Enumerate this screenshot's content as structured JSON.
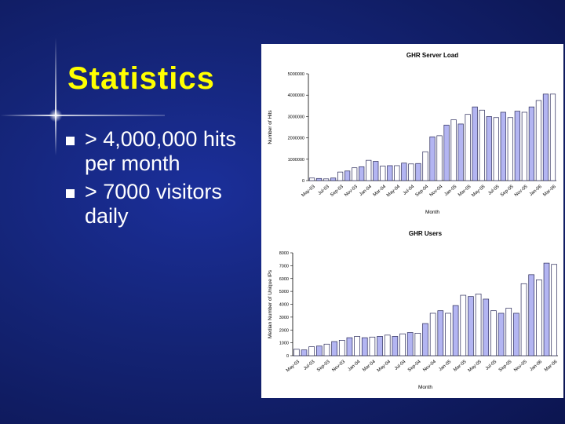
{
  "slide": {
    "title": "Statistics",
    "bullets": [
      "> 4,000,000 hits per month",
      "> 7000 visitors daily"
    ],
    "colors": {
      "background": "#142476",
      "title": "#ffff00",
      "text": "#ffffff"
    }
  },
  "chart_data": [
    {
      "type": "bar",
      "title": "GHR Server Load",
      "xlabel": "Month",
      "ylabel": "Number of Hits",
      "ylim": [
        0,
        5000000
      ],
      "yticks": [
        0,
        1000000,
        2000000,
        3000000,
        4000000,
        5000000
      ],
      "ytick_labels": [
        "0",
        "1000000",
        "2000000",
        "3000000",
        "4000000",
        "5000000"
      ],
      "categories": [
        "May-03",
        "Jun-03",
        "Jul-03",
        "Aug-03",
        "Sep-03",
        "Oct-03",
        "Nov-03",
        "Dec-03",
        "Jan-04",
        "Feb-04",
        "Mar-04",
        "Apr-04",
        "May-04",
        "Jun-04",
        "Jul-04",
        "Aug-04",
        "Sep-04",
        "Oct-04",
        "Nov-04",
        "Dec-04",
        "Jan-05",
        "Feb-05",
        "Mar-05",
        "Apr-05",
        "May-05",
        "Jun-05",
        "Jul-05",
        "Aug-05",
        "Sep-05",
        "Oct-05",
        "Nov-05",
        "Dec-05",
        "Jan-06",
        "Feb-06",
        "Mar-06"
      ],
      "xtick_labels": [
        "May-03",
        "Jul-03",
        "Sep-03",
        "Nov-03",
        "Jan-04",
        "Mar-04",
        "May-04",
        "Jul-04",
        "Sep-04",
        "Nov-04",
        "Jan-05",
        "Mar-05",
        "May-05",
        "Jul-05",
        "Sep-05",
        "Nov-05",
        "Jan-06",
        "Mar-06"
      ],
      "values": [
        120000,
        100000,
        80000,
        120000,
        400000,
        450000,
        600000,
        650000,
        950000,
        900000,
        680000,
        700000,
        700000,
        820000,
        780000,
        800000,
        1350000,
        2050000,
        2100000,
        2600000,
        2850000,
        2650000,
        3100000,
        3450000,
        3300000,
        3000000,
        2950000,
        3200000,
        2950000,
        3250000,
        3200000,
        3450000,
        3750000,
        4050000,
        4050000
      ],
      "grid": false,
      "legend": "none",
      "colors": {
        "bar_odd": "#ffffff",
        "bar_even": "#b3b5f2",
        "edge": "#2a2a5a"
      }
    },
    {
      "type": "bar",
      "title": "GHR Users",
      "xlabel": "Month",
      "ylabel": "Median Number of Unique IPs",
      "ylim": [
        0,
        8000
      ],
      "yticks": [
        0,
        1000,
        2000,
        3000,
        4000,
        5000,
        6000,
        7000,
        8000
      ],
      "ytick_labels": [
        "0",
        "1000",
        "2000",
        "3000",
        "4000",
        "5000",
        "6000",
        "7000",
        "8000"
      ],
      "categories": [
        "May-03",
        "Jun-03",
        "Jul-03",
        "Aug-03",
        "Sep-03",
        "Oct-03",
        "Nov-03",
        "Dec-03",
        "Jan-04",
        "Feb-04",
        "Mar-04",
        "Apr-04",
        "May-04",
        "Jun-04",
        "Jul-04",
        "Aug-04",
        "Sep-04",
        "Oct-04",
        "Nov-04",
        "Dec-04",
        "Jan-05",
        "Feb-05",
        "Mar-05",
        "Apr-05",
        "May-05",
        "Jun-05",
        "Jul-05",
        "Aug-05",
        "Sep-05",
        "Oct-05",
        "Nov-05",
        "Dec-05",
        "Jan-06",
        "Feb-06",
        "Mar-06"
      ],
      "xtick_labels": [
        "May-03",
        "Jul-03",
        "Sep-03",
        "Nov-03",
        "Jan-04",
        "Mar-04",
        "May-04",
        "Jul-04",
        "Sep-04",
        "Nov-04",
        "Jan-05",
        "Mar-05",
        "May-05",
        "Jul-05",
        "Sep-05",
        "Nov-05",
        "Jan-06",
        "Mar-06"
      ],
      "values": [
        500,
        450,
        700,
        750,
        900,
        1100,
        1200,
        1400,
        1500,
        1400,
        1450,
        1500,
        1600,
        1500,
        1700,
        1800,
        1750,
        2500,
        3300,
        3500,
        3300,
        3900,
        4700,
        4600,
        4800,
        4400,
        3500,
        3300,
        3700,
        3300,
        5600,
        6300,
        5900,
        7200,
        7100
      ],
      "grid": false,
      "legend": "none",
      "colors": {
        "bar_odd": "#ffffff",
        "bar_even": "#b3b5f2",
        "edge": "#2a2a5a"
      }
    }
  ]
}
